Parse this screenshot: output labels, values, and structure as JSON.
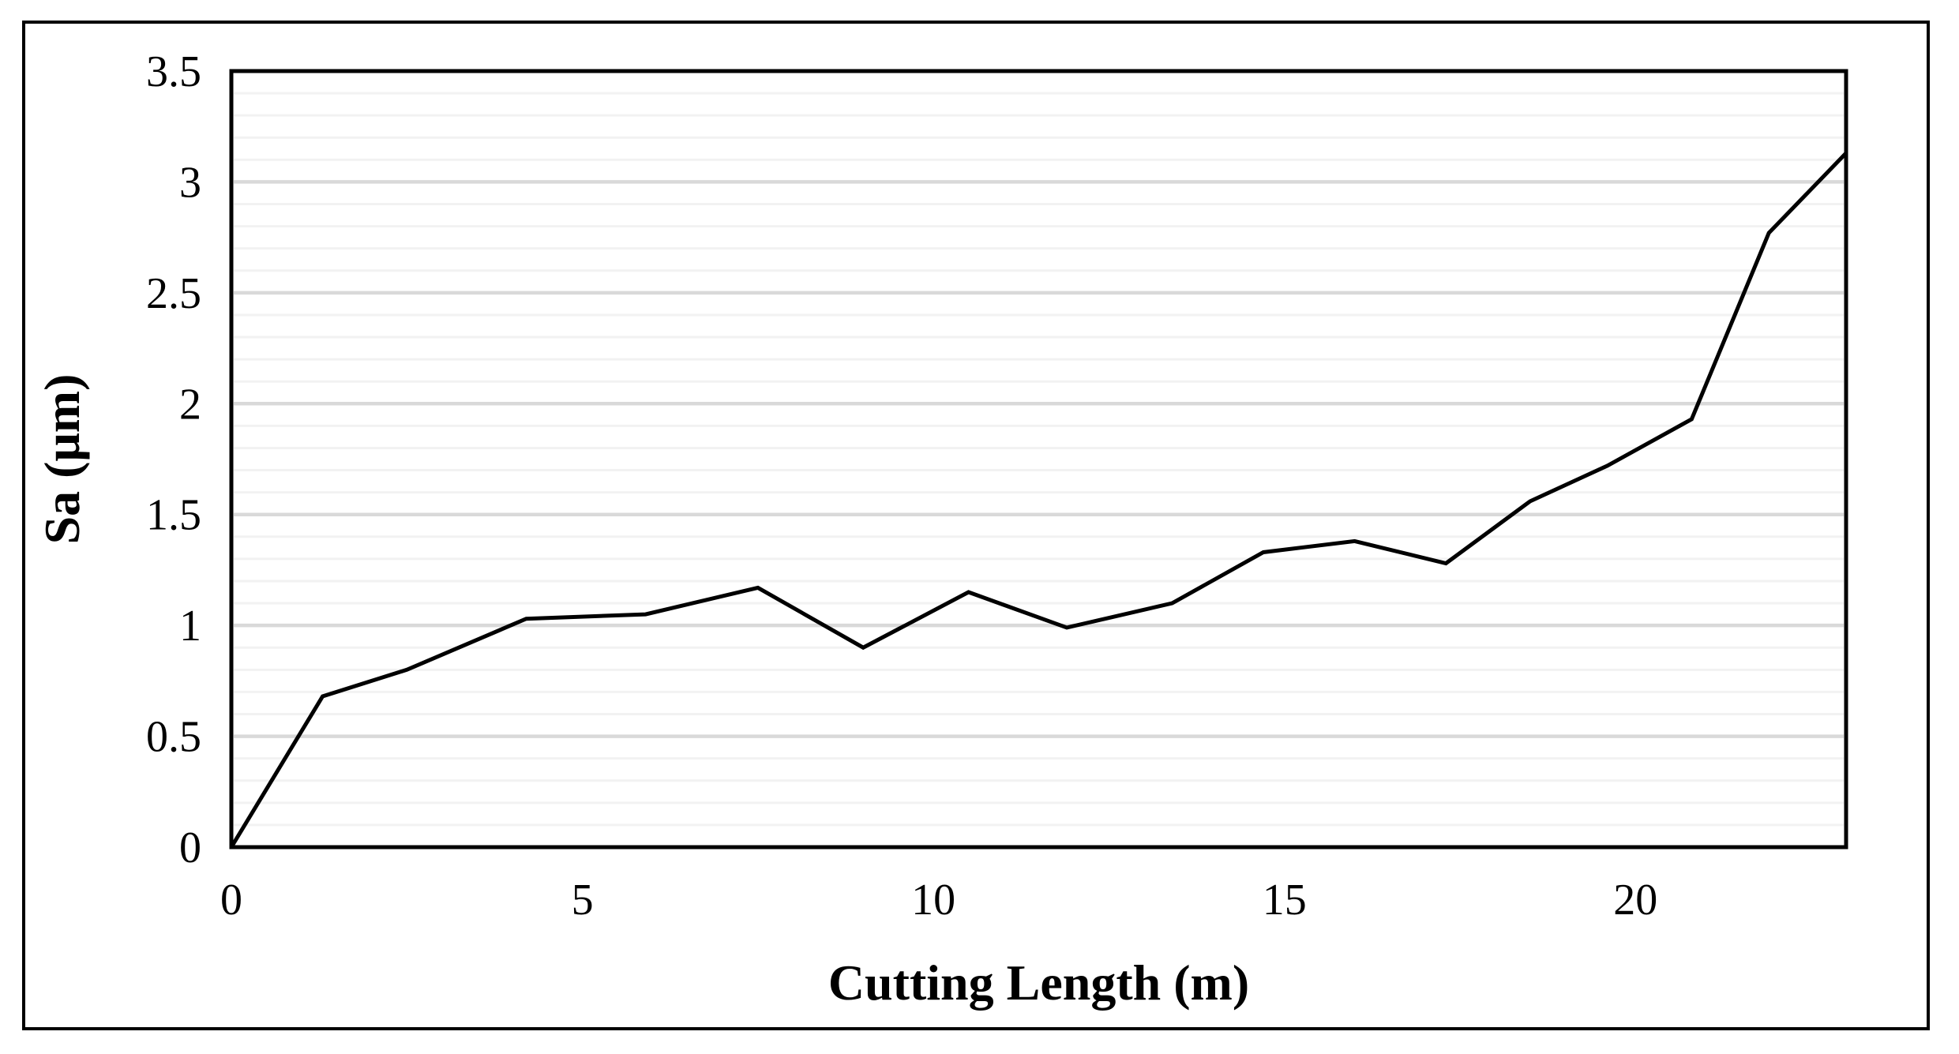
{
  "figure": {
    "background": "#ffffff",
    "frame_color": "#000000"
  },
  "chart_data": {
    "type": "line",
    "title": "",
    "xlabel": "Cutting Length (m)",
    "ylabel": "Sa (μm)",
    "x": [
      0,
      1.3,
      2.5,
      4.2,
      5.9,
      7.5,
      9.0,
      10.5,
      11.9,
      13.4,
      14.7,
      16.0,
      17.3,
      18.5,
      19.6,
      20.8,
      21.9,
      23.0
    ],
    "y": [
      0,
      0.68,
      0.8,
      1.03,
      1.05,
      1.17,
      0.9,
      1.15,
      0.99,
      1.1,
      1.33,
      1.38,
      1.28,
      1.56,
      1.72,
      1.93,
      2.77,
      3.13
    ],
    "xlim": [
      0,
      23
    ],
    "ylim": [
      0,
      3.5
    ],
    "x_tick_labels": [
      "0",
      "5",
      "10",
      "15",
      "20"
    ],
    "x_tick_values": [
      0,
      5,
      10,
      15,
      20
    ],
    "y_tick_labels": [
      "0",
      "0.5",
      "1",
      "1.5",
      "2",
      "2.5",
      "3",
      "3.5"
    ],
    "y_tick_values": [
      0,
      0.5,
      1,
      1.5,
      2,
      2.5,
      3,
      3.5
    ],
    "minor_grid_step": 0.1,
    "major_grid_step": 0.5,
    "grid_vertical": false,
    "legend": null,
    "line_color": "#000000",
    "minor_grid_color": "#f2f2f2",
    "major_grid_color": "#d9d9d9",
    "axis_color": "#000000",
    "tick_label_color": "#000000"
  }
}
